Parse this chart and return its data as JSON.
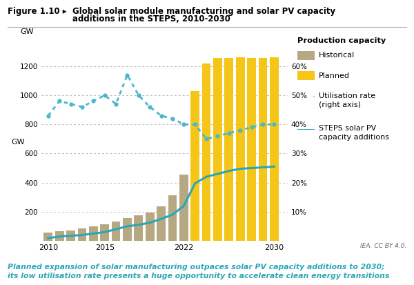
{
  "title_fig": "Figure 1.10 ▸",
  "title_text1": "Global solar module manufacturing and solar PV capacity",
  "title_text2": "additions in the STEPS, 2010-2030",
  "ylabel_left": "GW",
  "caption": "Planned expansion of solar manufacturing outpaces solar PV capacity additions to 2030;\nits low utilisation rate presents a huge opportunity to accelerate clean energy transitions",
  "credit": "IEA. CC BY 4.0.",
  "background_color": "#ffffff",
  "bar_historical_years": [
    2010,
    2011,
    2012,
    2013,
    2014,
    2015,
    2016,
    2017,
    2018,
    2019,
    2020,
    2021,
    2022
  ],
  "bar_historical_values": [
    58,
    65,
    72,
    83,
    98,
    115,
    135,
    158,
    175,
    195,
    235,
    315,
    455
  ],
  "bar_planned_years": [
    2023,
    2024,
    2025,
    2026,
    2027,
    2028,
    2029,
    2030
  ],
  "bar_planned_values": [
    1030,
    1220,
    1255,
    1255,
    1260,
    1255,
    1255,
    1260
  ],
  "bar_historical_color": "#b5a882",
  "bar_planned_color": "#f5c518",
  "utilisation_years": [
    2010,
    2011,
    2012,
    2013,
    2014,
    2015,
    2016,
    2017,
    2018,
    2019,
    2020,
    2021,
    2022,
    2023,
    2024,
    2025,
    2026,
    2027,
    2028,
    2029,
    2030
  ],
  "utilisation_values": [
    43,
    48,
    47,
    46,
    48,
    50,
    47,
    57,
    50,
    46,
    43,
    42,
    40,
    40,
    35,
    36,
    37,
    38,
    39,
    40,
    40
  ],
  "utilisation_color": "#4ab8c8",
  "steps_years": [
    2010,
    2011,
    2012,
    2013,
    2014,
    2015,
    2016,
    2017,
    2018,
    2019,
    2020,
    2021,
    2022,
    2023,
    2024,
    2025,
    2026,
    2027,
    2028,
    2029,
    2030
  ],
  "steps_values": [
    18,
    30,
    35,
    40,
    50,
    60,
    80,
    100,
    110,
    125,
    150,
    180,
    240,
    395,
    440,
    460,
    480,
    495,
    500,
    505,
    510
  ],
  "steps_color": "#2aa6b5",
  "ylim_left": [
    0,
    1400
  ],
  "ylim_right": [
    0,
    70
  ],
  "yticks_left": [
    200,
    400,
    600,
    800,
    1000,
    1200
  ],
  "yticks_right": [
    10,
    20,
    30,
    40,
    50,
    60
  ],
  "ytick_labels_right": [
    "10%",
    "20%",
    "30%",
    "40%",
    "50%",
    "60%"
  ],
  "xlim": [
    2009.4,
    2031.2
  ],
  "xticks": [
    2010,
    2015,
    2022,
    2030
  ],
  "grid_color": "#bbbbbb",
  "grid_yticks_left": [
    200,
    400,
    600,
    800,
    1000,
    1200
  ],
  "legend_title": "Production capacity",
  "bar_width": 0.78
}
